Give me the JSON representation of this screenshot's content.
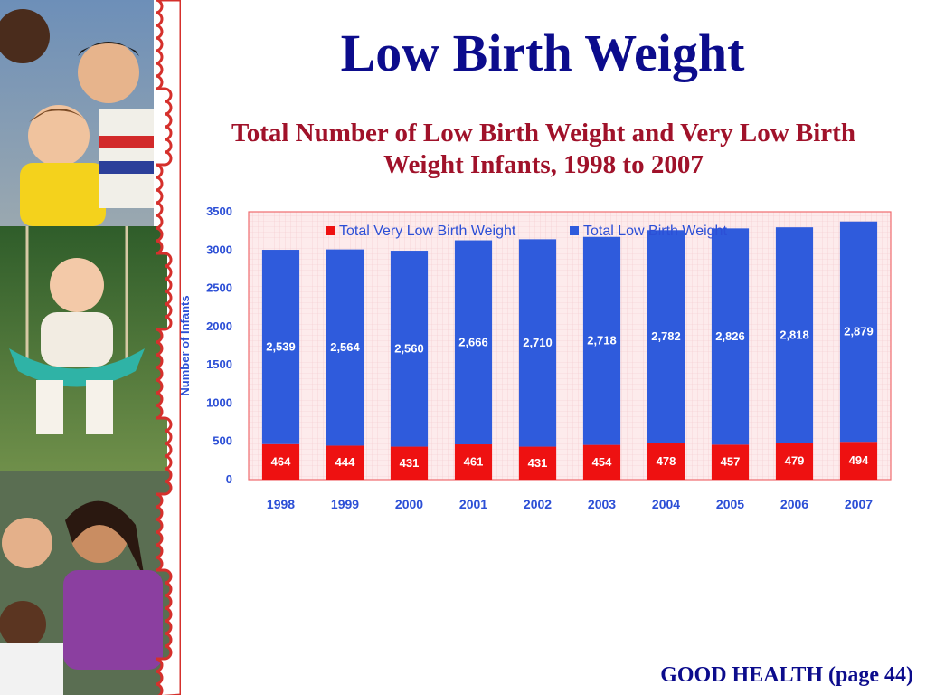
{
  "slide": {
    "title": "Low Birth Weight",
    "footer": "GOOD HEALTH (page 44)"
  },
  "chart_data": {
    "type": "bar",
    "stacked": true,
    "title": "Total Number of Low Birth Weight and Very Low Birth Weight Infants, 1998 to 2007",
    "xlabel": "",
    "ylabel": "Number of Infants",
    "ylim": [
      0,
      3500
    ],
    "yticks": [
      0,
      500,
      1000,
      1500,
      2000,
      2500,
      3000,
      3500
    ],
    "grid": true,
    "legend_position": "top",
    "categories": [
      "1998",
      "1999",
      "2000",
      "2001",
      "2002",
      "2003",
      "2004",
      "2005",
      "2006",
      "2007"
    ],
    "series": [
      {
        "name": "Total Very Low Birth Weight",
        "color": "#ee1111",
        "values": [
          464,
          444,
          431,
          461,
          431,
          454,
          478,
          457,
          479,
          494
        ],
        "labels": [
          "464",
          "444",
          "431",
          "461",
          "431",
          "454",
          "478",
          "457",
          "479",
          "494"
        ]
      },
      {
        "name": "Total  Low Birth Weight",
        "color": "#2f5bdc",
        "values": [
          2539,
          2564,
          2560,
          2666,
          2710,
          2718,
          2782,
          2826,
          2818,
          2879
        ],
        "labels": [
          "2,539",
          "2,564",
          "2,560",
          "2,666",
          "2,710",
          "2,718",
          "2,782",
          "2,826",
          "2,818",
          "2,879"
        ]
      }
    ]
  }
}
